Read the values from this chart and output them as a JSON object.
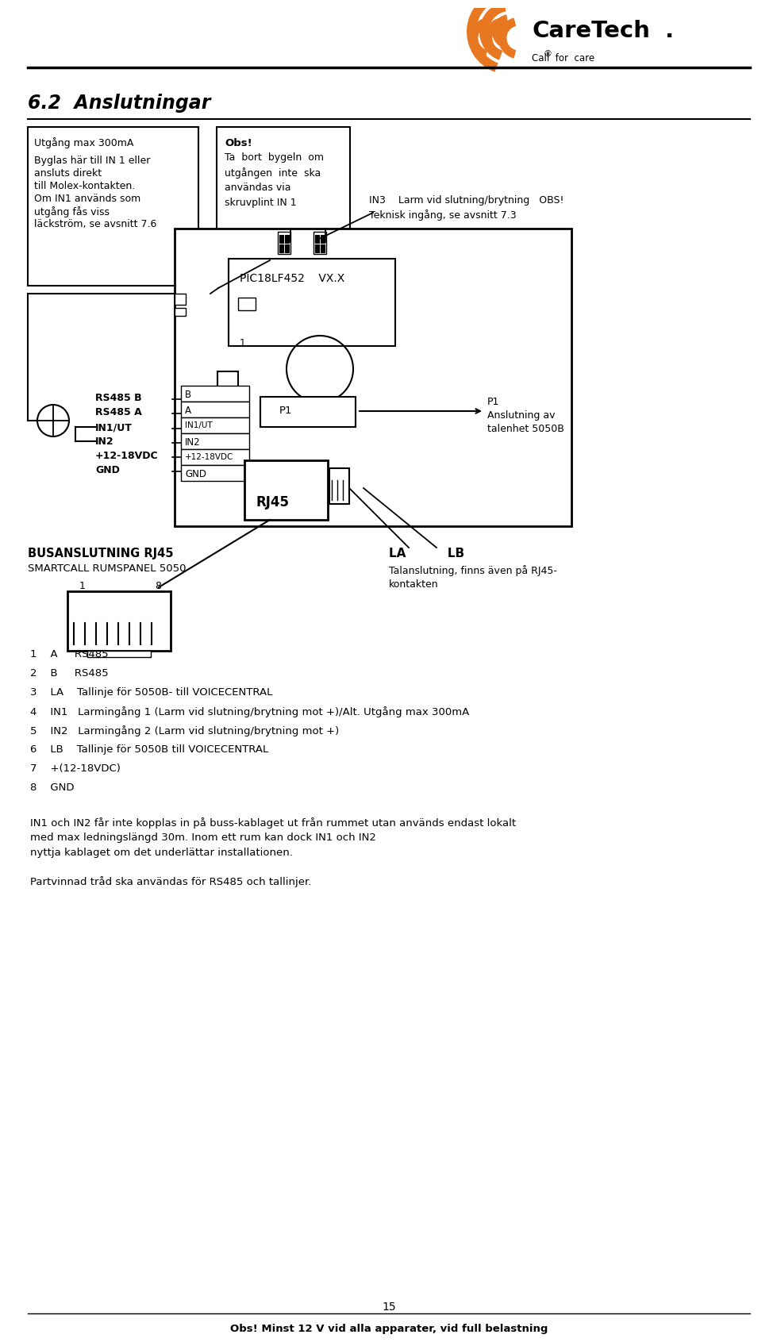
{
  "bg_color": "#ffffff",
  "title": "6.2  Anslutningar",
  "box1_lines": [
    "Utgång max 300mA",
    "",
    "Byglas här till IN 1 eller",
    "ansluts direkt",
    "till Molex-kontakten.",
    "Om IN1 används som",
    "utgång fås viss",
    "läckström, se avsnitt 7.6"
  ],
  "obs_title": "Obs!",
  "obs_body": [
    "Ta  bort  bygeln  om",
    "utgången  inte  ska",
    "användas via",
    "skruvplint IN 1"
  ],
  "in3_line1": "IN3    Larm vid slutning/brytning   OBS!",
  "in3_line2": "Teknisk ingång, se avsnitt 7.3",
  "pic_label": "PIC18LF452    VX.X",
  "connector_rows": [
    "B",
    "A",
    "IN1/UT",
    "IN2",
    "+12-18VDC",
    "GND"
  ],
  "left_side_labels": [
    "RS485 B",
    "RS485 A",
    "IN1/UT",
    "IN2",
    "+12-18VDC",
    "GND"
  ],
  "p1_box_label": "P1",
  "p1_ann_lines": [
    "P1",
    "Anslutning av",
    "talenhet 5050B"
  ],
  "rj45_label": "RJ45",
  "bus_line1": "BUSANSLUTNING RJ45",
  "bus_line2": "SMARTCALL RUMSPANEL 5050",
  "la_lb": "LA          LB",
  "tal_line1": "Talanslutning, finns även på RJ45-",
  "tal_line2": "kontakten",
  "list_items": [
    "1    A     RS485",
    "2    B     RS485",
    "3    LA    Tallinje för 5050B- till VOICECENTRAL",
    "4    IN1   Larmingång 1 (Larm vid slutning/brytning mot +)/Alt. Utgång max 300mA",
    "5    IN2   Larmingång 2 (Larm vid slutning/brytning mot +)",
    "6    LB    Tallinje för 5050B till VOICECENTRAL",
    "7    +(12-18VDC)",
    "8    GND"
  ],
  "para1_lines": [
    "IN1 och IN2 får inte kopplas in på buss-kablaget ut från rummet utan används endast lokalt",
    "med max ledningslängd 30m. Inom ett rum kan dock IN1 och IN2",
    "nyttja kablaget om det underlättar installationen."
  ],
  "para2": "Partvinnad tråd ska användas för RS485 och tallinjer.",
  "page_num": "15",
  "footer_text": "Obs! Minst 12 V vid alla apparater, vid full belastning",
  "orange": "#E87722"
}
